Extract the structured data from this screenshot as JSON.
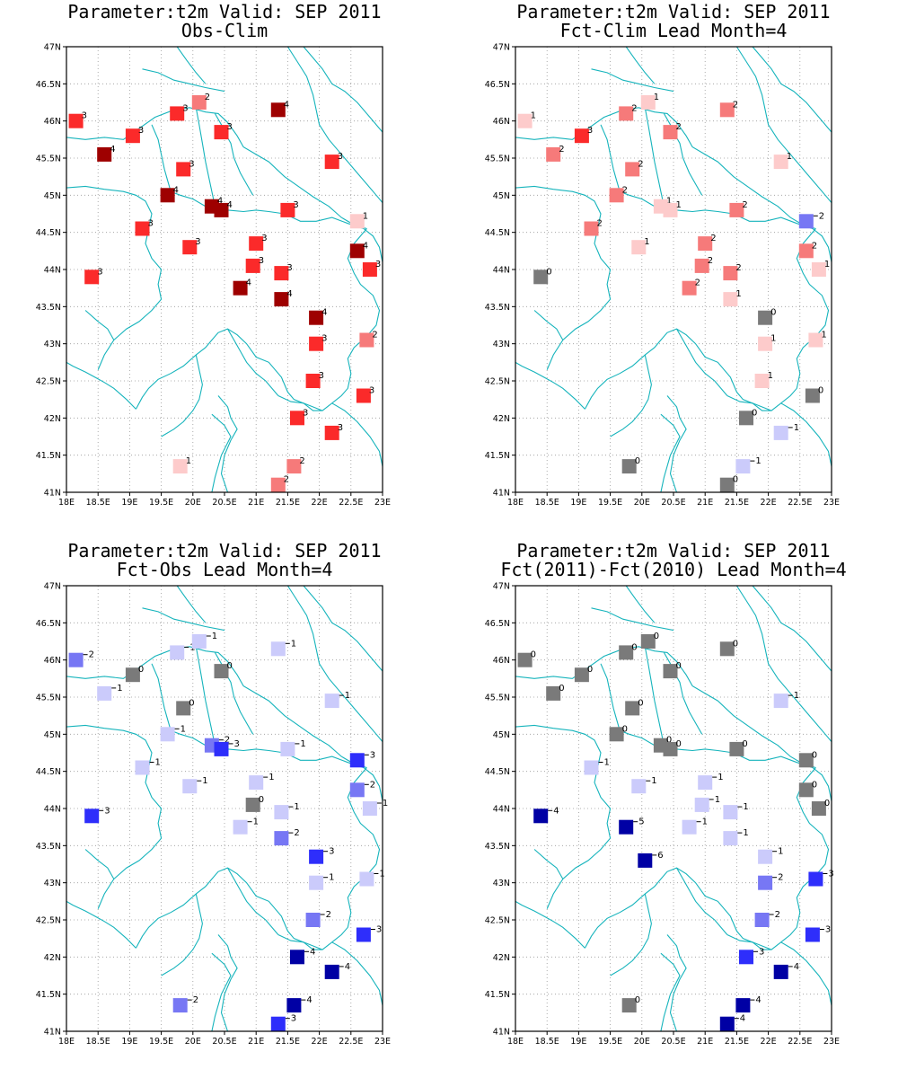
{
  "colors": {
    "coast": "#16b4bc",
    "grid": "#9a9a9a",
    "pos4": "#9e0000",
    "pos3": "#fb2a2a",
    "pos2": "#f67a7a",
    "pos1": "#fdcbcb",
    "zero": "#7a7a7a",
    "neg1": "#cbcbfb",
    "neg2": "#7777f4",
    "neg3": "#2e2efb",
    "neg4": "#0000a4"
  },
  "axes": {
    "lat_labels": [
      "41N",
      "41.5N",
      "42N",
      "42.5N",
      "43N",
      "43.5N",
      "44N",
      "44.5N",
      "45N",
      "45.5N",
      "46N",
      "46.5N",
      "47N"
    ],
    "lon_labels": [
      "18E",
      "18.5E",
      "19E",
      "19.5E",
      "20E",
      "20.5E",
      "21E",
      "21.5E",
      "22E",
      "22.5E",
      "23E"
    ],
    "lat_range": [
      41,
      47
    ],
    "lon_range": [
      18,
      23
    ]
  },
  "maps": [
    {
      "title_line1": "Parameter:t2m Valid: SEP 2011",
      "title_line2": "Obs-Clim",
      "stations": [
        {
          "lon": 18.15,
          "lat": 46.0,
          "v": 3
        },
        {
          "lon": 18.6,
          "lat": 45.55,
          "v": 4
        },
        {
          "lon": 19.05,
          "lat": 45.8,
          "v": 3
        },
        {
          "lon": 19.75,
          "lat": 46.1,
          "v": 3
        },
        {
          "lon": 20.1,
          "lat": 46.25,
          "v": 2
        },
        {
          "lon": 20.45,
          "lat": 45.85,
          "v": 3
        },
        {
          "lon": 21.35,
          "lat": 46.15,
          "v": 4
        },
        {
          "lon": 22.2,
          "lat": 45.45,
          "v": 3
        },
        {
          "lon": 19.85,
          "lat": 45.35,
          "v": 3
        },
        {
          "lon": 19.6,
          "lat": 45.0,
          "v": 4
        },
        {
          "lon": 20.3,
          "lat": 44.85,
          "v": 4
        },
        {
          "lon": 20.45,
          "lat": 44.8,
          "v": 4
        },
        {
          "lon": 21.5,
          "lat": 44.8,
          "v": 3
        },
        {
          "lon": 22.6,
          "lat": 44.65,
          "v": 1
        },
        {
          "lon": 19.2,
          "lat": 44.55,
          "v": 3
        },
        {
          "lon": 19.95,
          "lat": 44.3,
          "v": 3
        },
        {
          "lon": 21.0,
          "lat": 44.35,
          "v": 3
        },
        {
          "lon": 22.6,
          "lat": 44.25,
          "v": 4
        },
        {
          "lon": 22.8,
          "lat": 44.0,
          "v": 3
        },
        {
          "lon": 18.4,
          "lat": 43.9,
          "v": 3
        },
        {
          "lon": 20.95,
          "lat": 44.05,
          "v": 3
        },
        {
          "lon": 21.4,
          "lat": 43.95,
          "v": 3
        },
        {
          "lon": 20.75,
          "lat": 43.75,
          "v": 4
        },
        {
          "lon": 21.4,
          "lat": 43.6,
          "v": 4
        },
        {
          "lon": 21.95,
          "lat": 43.35,
          "v": 4
        },
        {
          "lon": 21.95,
          "lat": 43.0,
          "v": 3
        },
        {
          "lon": 22.75,
          "lat": 43.05,
          "v": 2
        },
        {
          "lon": 21.9,
          "lat": 42.5,
          "v": 3
        },
        {
          "lon": 22.7,
          "lat": 42.3,
          "v": 3
        },
        {
          "lon": 21.65,
          "lat": 42.0,
          "v": 3
        },
        {
          "lon": 22.2,
          "lat": 41.8,
          "v": 3
        },
        {
          "lon": 19.8,
          "lat": 41.35,
          "v": 1
        },
        {
          "lon": 21.6,
          "lat": 41.35,
          "v": 2
        },
        {
          "lon": 21.35,
          "lat": 41.1,
          "v": 2
        }
      ]
    },
    {
      "title_line1": "Parameter:t2m Valid: SEP 2011",
      "title_line2": "Fct-Clim Lead Month=4",
      "stations": [
        {
          "lon": 18.15,
          "lat": 46.0,
          "v": 1
        },
        {
          "lon": 18.6,
          "lat": 45.55,
          "v": 2
        },
        {
          "lon": 19.05,
          "lat": 45.8,
          "v": 3
        },
        {
          "lon": 19.75,
          "lat": 46.1,
          "v": 2
        },
        {
          "lon": 20.1,
          "lat": 46.25,
          "v": 1
        },
        {
          "lon": 20.45,
          "lat": 45.85,
          "v": 2
        },
        {
          "lon": 21.35,
          "lat": 46.15,
          "v": 2
        },
        {
          "lon": 22.2,
          "lat": 45.45,
          "v": 1
        },
        {
          "lon": 19.85,
          "lat": 45.35,
          "v": 2
        },
        {
          "lon": 19.6,
          "lat": 45.0,
          "v": 2
        },
        {
          "lon": 20.3,
          "lat": 44.85,
          "v": 1
        },
        {
          "lon": 20.45,
          "lat": 44.8,
          "v": 1
        },
        {
          "lon": 21.5,
          "lat": 44.8,
          "v": 2
        },
        {
          "lon": 22.6,
          "lat": 44.65,
          "v": -2
        },
        {
          "lon": 19.2,
          "lat": 44.55,
          "v": 2
        },
        {
          "lon": 19.95,
          "lat": 44.3,
          "v": 1
        },
        {
          "lon": 21.0,
          "lat": 44.35,
          "v": 2
        },
        {
          "lon": 22.6,
          "lat": 44.25,
          "v": 2
        },
        {
          "lon": 22.8,
          "lat": 44.0,
          "v": 1
        },
        {
          "lon": 18.4,
          "lat": 43.9,
          "v": 0
        },
        {
          "lon": 20.95,
          "lat": 44.05,
          "v": 2
        },
        {
          "lon": 21.4,
          "lat": 43.95,
          "v": 2
        },
        {
          "lon": 20.75,
          "lat": 43.75,
          "v": 2
        },
        {
          "lon": 21.4,
          "lat": 43.6,
          "v": 1
        },
        {
          "lon": 21.95,
          "lat": 43.35,
          "v": 0
        },
        {
          "lon": 21.95,
          "lat": 43.0,
          "v": 1
        },
        {
          "lon": 22.75,
          "lat": 43.05,
          "v": 1
        },
        {
          "lon": 21.9,
          "lat": 42.5,
          "v": 1
        },
        {
          "lon": 22.7,
          "lat": 42.3,
          "v": 0
        },
        {
          "lon": 21.65,
          "lat": 42.0,
          "v": 0
        },
        {
          "lon": 22.2,
          "lat": 41.8,
          "v": -1
        },
        {
          "lon": 19.8,
          "lat": 41.35,
          "v": 0
        },
        {
          "lon": 21.6,
          "lat": 41.35,
          "v": -1
        },
        {
          "lon": 21.35,
          "lat": 41.1,
          "v": 0
        }
      ]
    },
    {
      "title_line1": "Parameter:t2m Valid: SEP 2011",
      "title_line2": "Fct-Obs Lead Month=4",
      "stations": [
        {
          "lon": 18.15,
          "lat": 46.0,
          "v": -2
        },
        {
          "lon": 18.6,
          "lat": 45.55,
          "v": -1
        },
        {
          "lon": 19.05,
          "lat": 45.8,
          "v": 0
        },
        {
          "lon": 19.75,
          "lat": 46.1,
          "v": -1
        },
        {
          "lon": 20.1,
          "lat": 46.25,
          "v": -1
        },
        {
          "lon": 20.45,
          "lat": 45.85,
          "v": 0
        },
        {
          "lon": 21.35,
          "lat": 46.15,
          "v": -1
        },
        {
          "lon": 22.2,
          "lat": 45.45,
          "v": -1
        },
        {
          "lon": 19.85,
          "lat": 45.35,
          "v": 0
        },
        {
          "lon": 19.6,
          "lat": 45.0,
          "v": -1
        },
        {
          "lon": 20.3,
          "lat": 44.85,
          "v": -2
        },
        {
          "lon": 20.45,
          "lat": 44.8,
          "v": -3
        },
        {
          "lon": 21.5,
          "lat": 44.8,
          "v": -1
        },
        {
          "lon": 22.6,
          "lat": 44.65,
          "v": -3
        },
        {
          "lon": 19.2,
          "lat": 44.55,
          "v": -1
        },
        {
          "lon": 19.95,
          "lat": 44.3,
          "v": -1
        },
        {
          "lon": 21.0,
          "lat": 44.35,
          "v": -1
        },
        {
          "lon": 22.6,
          "lat": 44.25,
          "v": -2
        },
        {
          "lon": 22.8,
          "lat": 44.0,
          "v": -1
        },
        {
          "lon": 18.4,
          "lat": 43.9,
          "v": -3
        },
        {
          "lon": 20.95,
          "lat": 44.05,
          "v": 0
        },
        {
          "lon": 21.4,
          "lat": 43.95,
          "v": -1
        },
        {
          "lon": 20.75,
          "lat": 43.75,
          "v": -1
        },
        {
          "lon": 21.4,
          "lat": 43.6,
          "v": -2
        },
        {
          "lon": 21.95,
          "lat": 43.35,
          "v": -3
        },
        {
          "lon": 21.95,
          "lat": 43.0,
          "v": -1
        },
        {
          "lon": 22.75,
          "lat": 43.05,
          "v": -1
        },
        {
          "lon": 21.9,
          "lat": 42.5,
          "v": -2
        },
        {
          "lon": 22.7,
          "lat": 42.3,
          "v": -3
        },
        {
          "lon": 21.65,
          "lat": 42.0,
          "v": -4
        },
        {
          "lon": 22.2,
          "lat": 41.8,
          "v": -4
        },
        {
          "lon": 19.8,
          "lat": 41.35,
          "v": -2
        },
        {
          "lon": 21.6,
          "lat": 41.35,
          "v": -4
        },
        {
          "lon": 21.35,
          "lat": 41.1,
          "v": -3
        }
      ]
    },
    {
      "title_line1": "Parameter:t2m Valid: SEP 2011",
      "title_line2": "Fct(2011)-Fct(2010) Lead Month=4",
      "stations": [
        {
          "lon": 18.15,
          "lat": 46.0,
          "v": 0
        },
        {
          "lon": 18.6,
          "lat": 45.55,
          "v": 0
        },
        {
          "lon": 19.05,
          "lat": 45.8,
          "v": 0
        },
        {
          "lon": 19.75,
          "lat": 46.1,
          "v": 0
        },
        {
          "lon": 20.1,
          "lat": 46.25,
          "v": 0
        },
        {
          "lon": 20.45,
          "lat": 45.85,
          "v": 0
        },
        {
          "lon": 21.35,
          "lat": 46.15,
          "v": 0
        },
        {
          "lon": 22.2,
          "lat": 45.45,
          "v": -1
        },
        {
          "lon": 19.85,
          "lat": 45.35,
          "v": 0
        },
        {
          "lon": 19.6,
          "lat": 45.0,
          "v": 0
        },
        {
          "lon": 20.3,
          "lat": 44.85,
          "v": 0
        },
        {
          "lon": 20.45,
          "lat": 44.8,
          "v": 0
        },
        {
          "lon": 21.5,
          "lat": 44.8,
          "v": 0
        },
        {
          "lon": 22.6,
          "lat": 44.65,
          "v": 0
        },
        {
          "lon": 19.2,
          "lat": 44.55,
          "v": -1
        },
        {
          "lon": 19.95,
          "lat": 44.3,
          "v": -1
        },
        {
          "lon": 21.0,
          "lat": 44.35,
          "v": -1
        },
        {
          "lon": 22.6,
          "lat": 44.25,
          "v": 0
        },
        {
          "lon": 22.8,
          "lat": 44.0,
          "v": 0
        },
        {
          "lon": 18.4,
          "lat": 43.9,
          "v": -4
        },
        {
          "lon": 20.95,
          "lat": 44.05,
          "v": -1
        },
        {
          "lon": 21.4,
          "lat": 43.95,
          "v": -1
        },
        {
          "lon": 20.75,
          "lat": 43.75,
          "v": -1
        },
        {
          "lon": 19.75,
          "lat": 43.75,
          "v": -5
        },
        {
          "lon": 21.4,
          "lat": 43.6,
          "v": -1
        },
        {
          "lon": 20.05,
          "lat": 43.3,
          "v": -6
        },
        {
          "lon": 21.95,
          "lat": 43.35,
          "v": -1
        },
        {
          "lon": 21.95,
          "lat": 43.0,
          "v": -2
        },
        {
          "lon": 22.75,
          "lat": 43.05,
          "v": -3
        },
        {
          "lon": 21.9,
          "lat": 42.5,
          "v": -2
        },
        {
          "lon": 22.7,
          "lat": 42.3,
          "v": -3
        },
        {
          "lon": 21.65,
          "lat": 42.0,
          "v": -3
        },
        {
          "lon": 22.2,
          "lat": 41.8,
          "v": -4
        },
        {
          "lon": 19.8,
          "lat": 41.35,
          "v": 0
        },
        {
          "lon": 21.6,
          "lat": 41.35,
          "v": -4
        },
        {
          "lon": 21.35,
          "lat": 41.1,
          "v": -4
        }
      ]
    }
  ]
}
